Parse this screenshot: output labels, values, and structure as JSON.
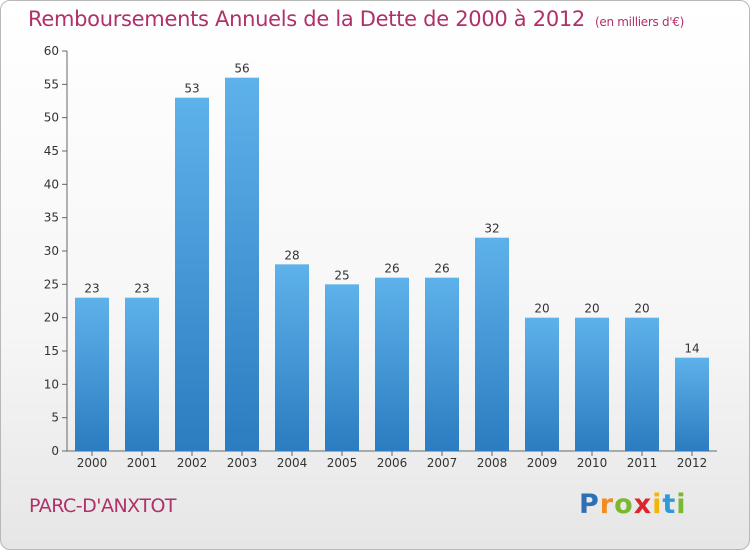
{
  "chart_data": {
    "type": "bar",
    "title": "Remboursements Annuels de la Dette de 2000 à 2012",
    "subtitle": "(en milliers d'€)",
    "categories": [
      "2000",
      "2001",
      "2002",
      "2003",
      "2004",
      "2005",
      "2006",
      "2007",
      "2008",
      "2009",
      "2010",
      "2011",
      "2012"
    ],
    "values": [
      23,
      23,
      53,
      56,
      28,
      25,
      26,
      26,
      32,
      20,
      20,
      20,
      14
    ],
    "ylim": [
      0,
      60
    ],
    "yticks": [
      0,
      5,
      10,
      15,
      20,
      25,
      30,
      35,
      40,
      45,
      50,
      55,
      60
    ],
    "grid": false,
    "bar_color_top": "#5eb2ea",
    "bar_color_bottom": "#2b7cc0"
  },
  "commune": "PARC-D'ANXTOT",
  "logo": {
    "letters": [
      "P",
      "r",
      "o",
      "x",
      "i",
      "t",
      "i"
    ],
    "colors": [
      "#2e6fb5",
      "#f18c1e",
      "#7cb82f",
      "#d9262f",
      "#f2b705",
      "#2e9ad6",
      "#7cb82f"
    ]
  }
}
